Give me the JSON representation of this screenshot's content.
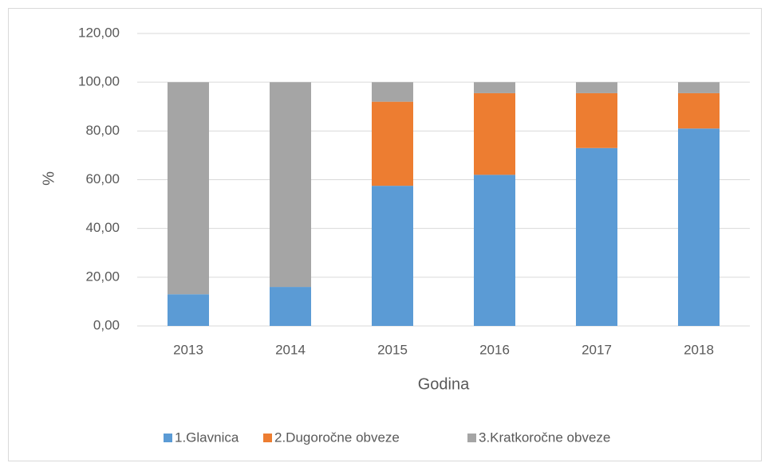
{
  "chart_data": {
    "type": "stacked_bar",
    "xlabel": "Godina",
    "ylabel": "%",
    "categories": [
      "2013",
      "2014",
      "2015",
      "2016",
      "2017",
      "2018"
    ],
    "series": [
      {
        "name": "1.Glavnica",
        "color": "#5b9bd5",
        "values": [
          13,
          16,
          57.5,
          62,
          73,
          81
        ]
      },
      {
        "name": "2.Dugoročne obveze",
        "color": "#ed7d31",
        "values": [
          0,
          0,
          34.5,
          33.5,
          22.5,
          14.5
        ]
      },
      {
        "name": "3.Kratkoročne obveze",
        "color": "#a5a5a5",
        "values": [
          87,
          84,
          8,
          4.5,
          4.5,
          4.5
        ]
      }
    ],
    "ylim": [
      0,
      120
    ],
    "yticks": [
      {
        "value": 0,
        "label": "0,00"
      },
      {
        "value": 20,
        "label": "20,00"
      },
      {
        "value": 40,
        "label": "40,00"
      },
      {
        "value": 60,
        "label": "60,00"
      },
      {
        "value": 80,
        "label": "80,00"
      },
      {
        "value": 100,
        "label": "100,00"
      },
      {
        "value": 120,
        "label": "120,00"
      }
    ],
    "grid": true,
    "legend": "bottom"
  }
}
